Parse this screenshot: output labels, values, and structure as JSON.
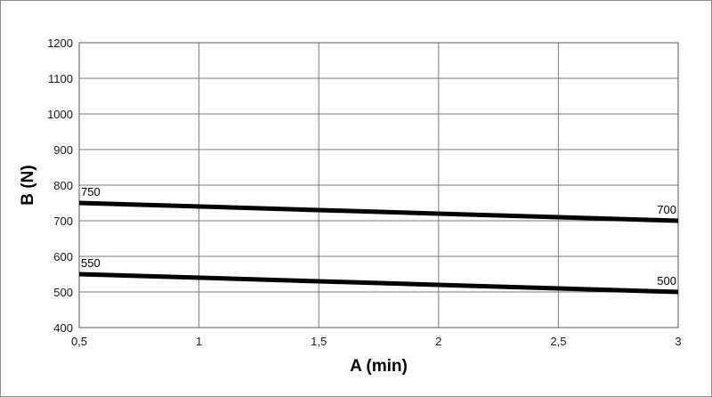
{
  "chart_data": {
    "type": "line",
    "title": "",
    "xlabel": "A (min)",
    "ylabel": "B (N)",
    "xlim": [
      0.5,
      3
    ],
    "ylim": [
      400,
      1200
    ],
    "x_ticks": [
      0.5,
      1,
      1.5,
      2,
      2.5,
      3
    ],
    "x_tick_labels": [
      "0,5",
      "1",
      "1,5",
      "2",
      "2,5",
      "3"
    ],
    "y_ticks": [
      400,
      500,
      600,
      700,
      800,
      900,
      1000,
      1100,
      1200
    ],
    "y_tick_labels": [
      "400",
      "500",
      "600",
      "700",
      "800",
      "900",
      "1000",
      "1100",
      "1200"
    ],
    "grid": true,
    "legend": "none",
    "series": [
      {
        "x": [
          0.5,
          3
        ],
        "values": [
          750,
          700
        ],
        "data_labels": [
          "750",
          "700"
        ]
      },
      {
        "x": [
          0.5,
          3
        ],
        "values": [
          550,
          500
        ],
        "data_labels": [
          "550",
          "500"
        ]
      }
    ]
  }
}
